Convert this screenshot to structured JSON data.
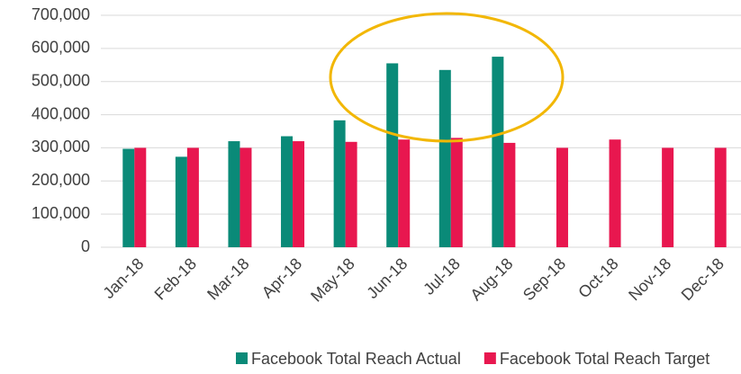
{
  "chart_data": {
    "type": "bar",
    "categories": [
      "Jan-18",
      "Feb-18",
      "Mar-18",
      "Apr-18",
      "May-18",
      "Jun-18",
      "Jul-18",
      "Aug-18",
      "Sep-18",
      "Oct-18",
      "Nov-18",
      "Dec-18"
    ],
    "series": [
      {
        "name": "Facebook Total Reach Actual",
        "color": "#0a8a78",
        "values": [
          297000,
          273000,
          320000,
          335000,
          383000,
          555000,
          535000,
          575000,
          null,
          null,
          null,
          null
        ]
      },
      {
        "name": "Facebook Total Reach Target",
        "color": "#e8174f",
        "values": [
          300000,
          300000,
          300000,
          320000,
          318000,
          325000,
          330000,
          315000,
          300000,
          325000,
          300000,
          300000
        ]
      }
    ],
    "ylim": [
      0,
      700000
    ],
    "yticks": [
      0,
      {
        "value": 100000,
        "label": "100,000"
      },
      {
        "value": 200000,
        "label": "200,000"
      },
      {
        "value": 300000,
        "label": "300,000"
      },
      {
        "value": 400000,
        "label": "400,000"
      },
      {
        "value": 500000,
        "label": "500,000"
      },
      {
        "value": 600000,
        "label": "600,000"
      },
      {
        "value": 700000,
        "label": "700,000"
      }
    ],
    "grid": true
  }
}
